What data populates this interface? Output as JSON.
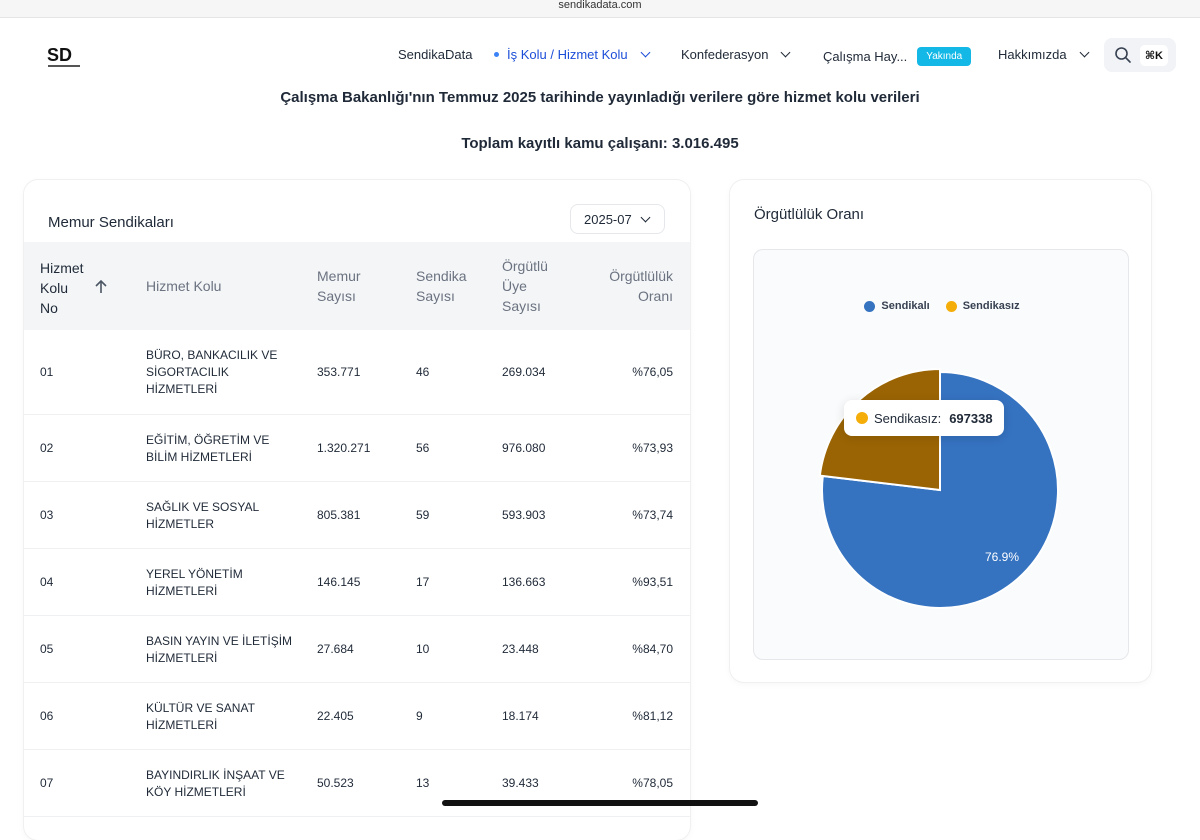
{
  "browser": {
    "url": "sendikadata.com"
  },
  "nav": {
    "items": [
      {
        "label": "SendikaData"
      },
      {
        "label": "İş Kolu / Hizmet Kolu"
      },
      {
        "label": "Konfederasyon"
      },
      {
        "label": "Çalışma Hay..."
      },
      {
        "label": "Hakkımızda"
      }
    ],
    "badge": "Yakında",
    "shortcut": "⌘K"
  },
  "page": {
    "subtitle": "Çalışma Bakanlığı'nın Temmuz 2025 tarihinde yayınladığı verilere göre hizmet kolu verileri",
    "total": "Toplam kayıtlı kamu çalışanı: 3.016.495"
  },
  "table_card": {
    "title": "Memur Sendikaları",
    "year": "2025-07",
    "headers": {
      "no": [
        "Hizmet",
        "Kolu",
        "No"
      ],
      "name": "Hizmet Kolu",
      "memur": [
        "Memur",
        "Sayısı"
      ],
      "sendika": [
        "Sendika",
        "Sayısı"
      ],
      "orgutlu": [
        "Örgütlü",
        "Üye",
        "Sayısı"
      ],
      "oran": [
        "Örgütlülük",
        "Oranı"
      ]
    },
    "rows": [
      {
        "no": "01",
        "name": [
          "BÜRO, BANKACILIK VE",
          "SİGORTACILIK",
          "HİZMETLERİ"
        ],
        "memur": "353.771",
        "sendika": "46",
        "orgutlu": "269.034",
        "oran": "%76,05"
      },
      {
        "no": "02",
        "name": [
          "EĞİTİM, ÖĞRETİM VE",
          "BİLİM HİZMETLERİ"
        ],
        "memur": "1.320.271",
        "sendika": "56",
        "orgutlu": "976.080",
        "oran": "%73,93"
      },
      {
        "no": "03",
        "name": [
          "SAĞLIK VE SOSYAL",
          "HİZMETLER"
        ],
        "memur": "805.381",
        "sendika": "59",
        "orgutlu": "593.903",
        "oran": "%73,74"
      },
      {
        "no": "04",
        "name": [
          "YEREL YÖNETİM",
          "HİZMETLERİ"
        ],
        "memur": "146.145",
        "sendika": "17",
        "orgutlu": "136.663",
        "oran": "%93,51"
      },
      {
        "no": "05",
        "name": [
          "BASIN YAYIN VE İLETİŞİM",
          "HİZMETLERİ"
        ],
        "memur": "27.684",
        "sendika": "10",
        "orgutlu": "23.448",
        "oran": "%84,70"
      },
      {
        "no": "06",
        "name": [
          "KÜLTÜR VE SANAT",
          "HİZMETLERİ"
        ],
        "memur": "22.405",
        "sendika": "9",
        "orgutlu": "18.174",
        "oran": "%81,12"
      },
      {
        "no": "07",
        "name": [
          "BAYINDIRLIK İNŞAAT VE",
          "KÖY HİZMETLERİ"
        ],
        "memur": "50.523",
        "sendika": "13",
        "orgutlu": "39.433",
        "oran": "%78,05"
      }
    ]
  },
  "chart_card": {
    "title": "Örgütlülük Oranı",
    "tooltip": {
      "label": "Sendikasız:",
      "value": "697338"
    },
    "slice_label": "76.9%"
  },
  "colors": {
    "sendikali": "#3572c0",
    "sendikasiz": "#9a6404",
    "sendikasiz_legend": "#f5ad0a",
    "accent": "#1d4ed8",
    "badge": "#14b8e6"
  },
  "chart_data": {
    "type": "pie",
    "legend": [
      "Sendikalı",
      "Sendikasız"
    ],
    "legend_position": "top",
    "slices": [
      {
        "name": "Sendikalı",
        "value": 76.9
      },
      {
        "name": "Sendikasız",
        "value": 23.1
      }
    ]
  }
}
